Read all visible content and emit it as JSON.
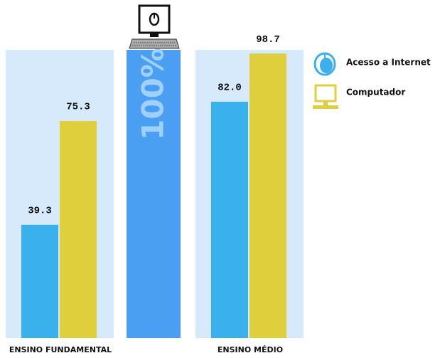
{
  "chart_data": {
    "type": "bar",
    "categories": [
      "ENSINO FUNDAMENTAL",
      "ENSINO MÉDIO"
    ],
    "series": [
      {
        "name": "Acesso a Internet",
        "color": "#3ab0ec",
        "values": [
          39.3,
          82.0
        ],
        "value_labels": [
          "39.3",
          "82.0"
        ]
      },
      {
        "name": "Computador",
        "color": "#e0cf3c",
        "values": [
          75.3,
          98.7
        ],
        "value_labels": [
          "75.3",
          "98.7"
        ]
      }
    ],
    "reference": {
      "value": 100,
      "label": "100%",
      "color": "#4a9ff2"
    },
    "ylim": [
      0,
      100
    ]
  }
}
